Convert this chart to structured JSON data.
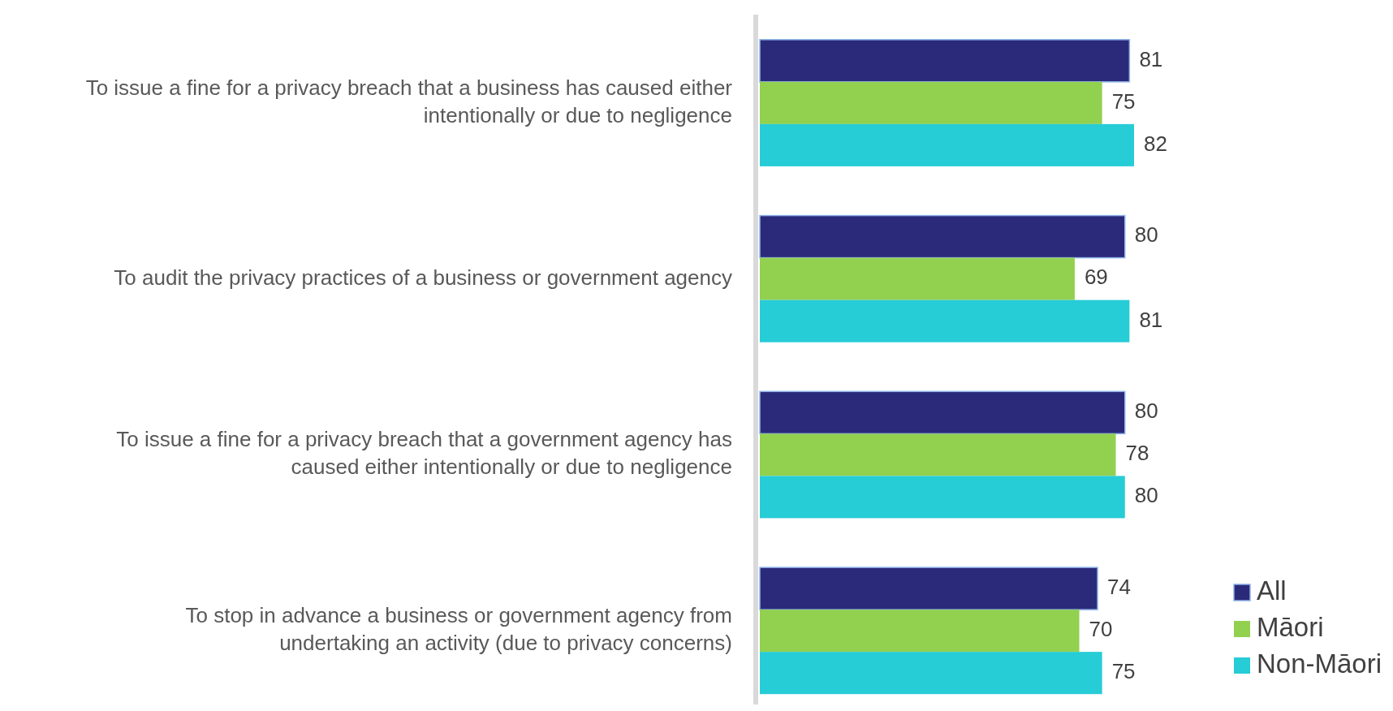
{
  "chart_data": {
    "type": "bar",
    "orientation": "horizontal",
    "categories": [
      "To issue a fine for a privacy breach that a business has caused either intentionally or due to negligence",
      "To audit the privacy practices of a business or government agency",
      "To issue a fine for a privacy breach that a government agency has caused either intentionally or due to negligence",
      "To stop in advance a business or government agency from undertaking an activity (due to privacy concerns)"
    ],
    "series": [
      {
        "name": "All",
        "color": "#2b2a7a",
        "values": [
          81,
          80,
          80,
          74
        ]
      },
      {
        "name": "Māori",
        "color": "#92d050",
        "values": [
          75,
          69,
          78,
          70
        ]
      },
      {
        "name": "Non-Māori",
        "color": "#26ccd6",
        "values": [
          82,
          81,
          80,
          75
        ]
      }
    ],
    "data_labels": true,
    "legend": "bottom right"
  }
}
